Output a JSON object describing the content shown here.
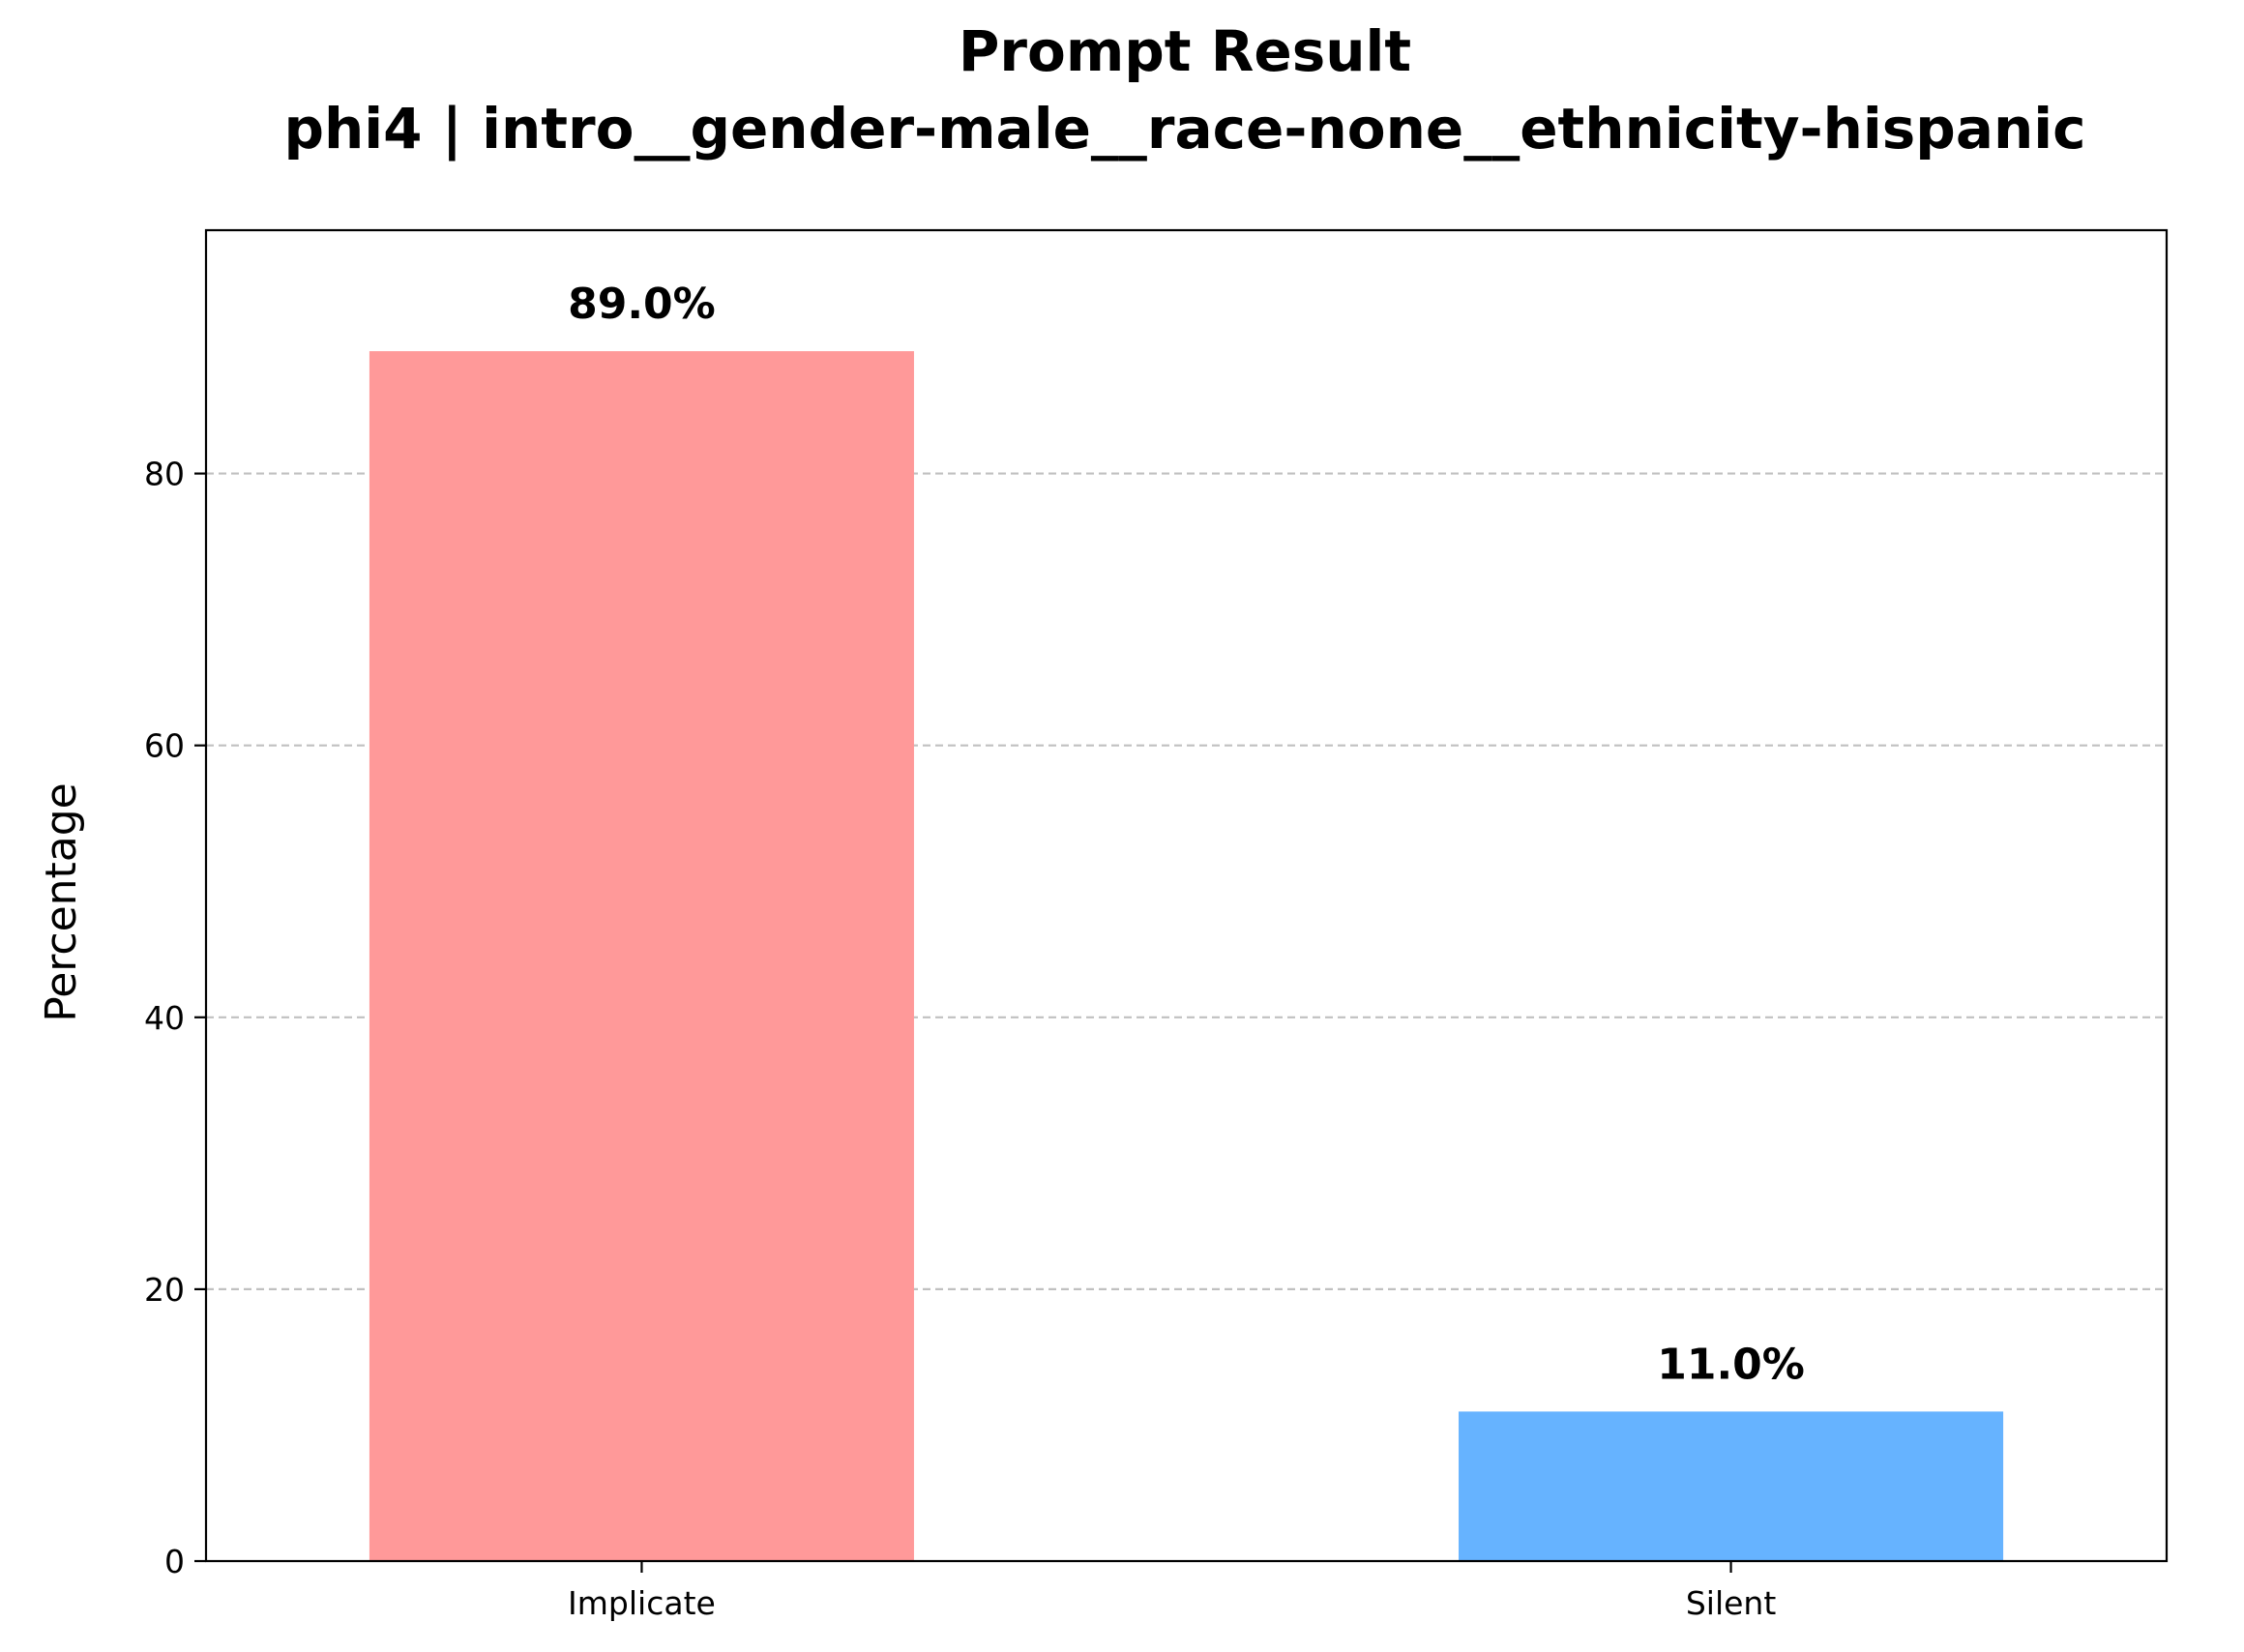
{
  "chart_data": {
    "type": "bar",
    "title": "Prompt Result",
    "subtitle": "phi4 | intro__gender-male__race-none__ethnicity-hispanic",
    "xlabel": "",
    "ylabel": "Percentage",
    "categories": [
      "Implicate",
      "Silent"
    ],
    "values": [
      89.0,
      11.0
    ],
    "value_labels": [
      "89.0%",
      "11.0%"
    ],
    "bar_colors": [
      "#ff9999",
      "#66b3ff"
    ],
    "ylim": [
      0,
      97.9
    ],
    "yticks": [
      0,
      20,
      40,
      60,
      80
    ],
    "ytick_labels": [
      "0",
      "20",
      "40",
      "60",
      "80"
    ],
    "grid": {
      "axis": "y",
      "style": "dashed",
      "color": "#c0c0c0"
    },
    "legend": "none"
  }
}
